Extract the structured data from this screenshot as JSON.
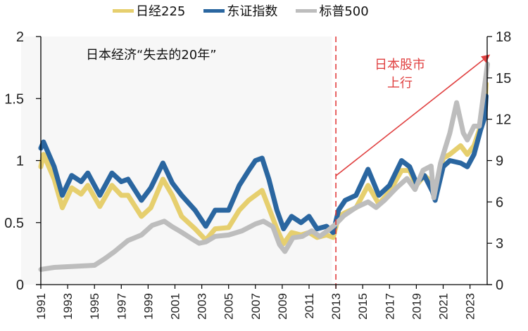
{
  "chart_data": {
    "type": "line",
    "title": "",
    "legend": [
      "日经225",
      "东证指数",
      "标普500"
    ],
    "legend_position": "top",
    "left_axis": {
      "ylim": [
        0,
        2
      ],
      "ticks": [
        "0",
        "0.5",
        "1",
        "1.5",
        "2"
      ]
    },
    "right_axis": {
      "ylim": [
        0,
        18
      ],
      "ticks": [
        "0",
        "3",
        "6",
        "9",
        "12",
        "15",
        "18"
      ]
    },
    "xlim": [
      1991,
      2024.5
    ],
    "x_ticks": [
      "1991",
      "1993",
      "1995",
      "1997",
      "1999",
      "2001",
      "2003",
      "2005",
      "2007",
      "2009",
      "2011",
      "2013",
      "2015",
      "2017",
      "2019",
      "2021",
      "2023"
    ],
    "shaded_region": {
      "from": 1991,
      "to": 2012.7,
      "label": "日本经济“失去的20年”"
    },
    "vline": {
      "x": 2013,
      "style": "dashed",
      "color": "#e03030"
    },
    "arrow": {
      "from": [
        2013,
        7.9
      ],
      "to": [
        2024.5,
        16.7
      ],
      "axis": "right",
      "label_line1": "日本股市",
      "label_line2": "上行",
      "color": "#e04040"
    },
    "series": [
      {
        "name": "日经225",
        "axis": "left",
        "color": "#e6cf6e",
        "x": [
          1991,
          1991.2,
          1992,
          1992.6,
          1993.3,
          1994,
          1994.5,
          1995.4,
          1996.3,
          1997,
          1997.5,
          1998.5,
          1999.2,
          2000.1,
          2000.8,
          2001.5,
          2002.5,
          2003.3,
          2004,
          2005,
          2005.8,
          2006.5,
          2007,
          2007.5,
          2008,
          2008.6,
          2009.1,
          2009.7,
          2010.4,
          2011,
          2011.6,
          2012.3,
          2012.8,
          2013.2,
          2013.7,
          2014.5,
          2015.4,
          2016.2,
          2017,
          2017.9,
          2018.5,
          2019,
          2019.6,
          2020.2,
          2020.4,
          2021,
          2021.5,
          2022.3,
          2022.8,
          2023.3,
          2023.8,
          2024.1,
          2024.2
        ],
        "values": [
          0.95,
          1.05,
          0.85,
          0.62,
          0.78,
          0.73,
          0.8,
          0.63,
          0.8,
          0.72,
          0.72,
          0.55,
          0.62,
          0.85,
          0.72,
          0.55,
          0.45,
          0.36,
          0.45,
          0.46,
          0.6,
          0.68,
          0.72,
          0.76,
          0.62,
          0.45,
          0.33,
          0.42,
          0.4,
          0.42,
          0.38,
          0.4,
          0.38,
          0.55,
          0.58,
          0.62,
          0.8,
          0.65,
          0.75,
          0.92,
          0.92,
          0.8,
          0.88,
          0.82,
          0.72,
          1.02,
          1.05,
          1.12,
          1.05,
          1.12,
          1.28,
          1.4,
          1.62
        ]
      },
      {
        "name": "东证指数",
        "axis": "left",
        "color": "#2a66a0",
        "x": [
          1991,
          1991.2,
          1992,
          1992.6,
          1993.3,
          1994,
          1994.5,
          1995.4,
          1996.3,
          1997,
          1997.5,
          1998.5,
          1999.2,
          2000.1,
          2000.8,
          2001.5,
          2002.5,
          2003.3,
          2004,
          2005,
          2005.8,
          2006.5,
          2007,
          2007.5,
          2008,
          2008.6,
          2009.1,
          2009.7,
          2010.4,
          2011,
          2011.6,
          2012.3,
          2012.8,
          2013.2,
          2013.7,
          2014.5,
          2015.4,
          2016.2,
          2017,
          2017.9,
          2018.5,
          2019,
          2019.6,
          2020.2,
          2020.4,
          2021,
          2021.5,
          2022.3,
          2022.8,
          2023.3,
          2023.8,
          2024.1,
          2024.2
        ],
        "values": [
          1.1,
          1.15,
          0.95,
          0.72,
          0.88,
          0.83,
          0.9,
          0.72,
          0.9,
          0.83,
          0.85,
          0.68,
          0.78,
          0.98,
          0.82,
          0.72,
          0.6,
          0.47,
          0.6,
          0.6,
          0.8,
          0.92,
          1.0,
          1.02,
          0.85,
          0.6,
          0.45,
          0.55,
          0.5,
          0.55,
          0.45,
          0.47,
          0.42,
          0.6,
          0.68,
          0.72,
          0.93,
          0.72,
          0.8,
          1.0,
          0.95,
          0.82,
          0.88,
          0.75,
          0.68,
          0.95,
          1.0,
          0.98,
          0.95,
          1.05,
          1.25,
          1.35,
          1.52
        ]
      },
      {
        "name": "标普500",
        "axis": "right",
        "color": "#bdbdbd",
        "x": [
          1991,
          1992,
          1993,
          1994,
          1995,
          1995.8,
          1996.5,
          1997.5,
          1998.5,
          1999.3,
          2000.2,
          2000.8,
          2001.5,
          2002.3,
          2002.8,
          2003.3,
          2004,
          2005,
          2006,
          2007,
          2007.6,
          2008.3,
          2008.8,
          2009.2,
          2009.8,
          2010.5,
          2011.2,
          2011.8,
          2012.5,
          2013,
          2013.6,
          2014.5,
          2015.4,
          2016,
          2016.6,
          2017.5,
          2018.3,
          2018.9,
          2019.5,
          2020.1,
          2020.3,
          2020.8,
          2021.5,
          2022,
          2022.5,
          2022.8,
          2023.3,
          2023.7,
          2024.1,
          2024.3
        ],
        "values": [
          1.1,
          1.25,
          1.3,
          1.35,
          1.4,
          1.9,
          2.4,
          3.2,
          3.6,
          4.3,
          4.6,
          4.2,
          3.8,
          3.3,
          3.0,
          3.1,
          3.5,
          3.6,
          3.9,
          4.4,
          4.6,
          4.2,
          2.9,
          2.4,
          3.4,
          3.5,
          3.9,
          3.5,
          4.0,
          4.4,
          5.0,
          5.6,
          6.0,
          5.6,
          6.1,
          7.0,
          7.7,
          6.9,
          8.3,
          8.6,
          6.3,
          8.8,
          11.0,
          13.2,
          11.0,
          10.5,
          11.5,
          11.5,
          14.5,
          16.0
        ]
      }
    ]
  }
}
